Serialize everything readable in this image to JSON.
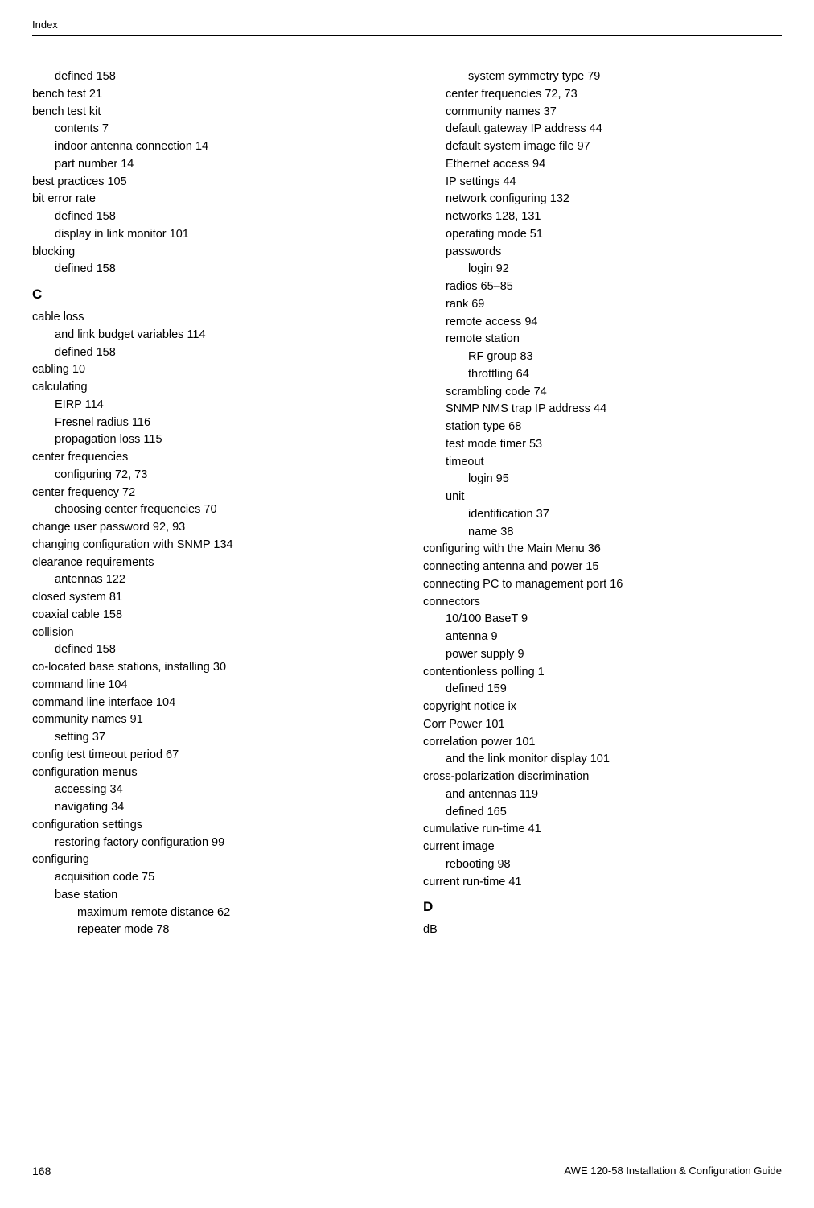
{
  "header": "Index",
  "pageNumber": "168",
  "footerRight": "AWE 120-58   Installation & Configuration Guide",
  "leftColumn": [
    {
      "text": "defined 158",
      "indent": 1
    },
    {
      "text": "bench test 21",
      "indent": 0
    },
    {
      "text": "bench test kit",
      "indent": 0
    },
    {
      "text": "contents 7",
      "indent": 1
    },
    {
      "text": "indoor antenna connection 14",
      "indent": 1
    },
    {
      "text": "part number 14",
      "indent": 1
    },
    {
      "text": "best practices 105",
      "indent": 0
    },
    {
      "text": "bit error rate",
      "indent": 0
    },
    {
      "text": "defined 158",
      "indent": 1
    },
    {
      "text": "display in link monitor 101",
      "indent": 1
    },
    {
      "text": "blocking",
      "indent": 0
    },
    {
      "text": "defined 158",
      "indent": 1
    },
    {
      "text": "C",
      "indent": 0,
      "letter": true
    },
    {
      "text": "cable loss",
      "indent": 0
    },
    {
      "text": "and link budget variables 114",
      "indent": 1
    },
    {
      "text": "defined 158",
      "indent": 1
    },
    {
      "text": "cabling 10",
      "indent": 0
    },
    {
      "text": "calculating",
      "indent": 0
    },
    {
      "text": "EIRP 114",
      "indent": 1
    },
    {
      "text": "Fresnel radius 116",
      "indent": 1
    },
    {
      "text": "propagation loss 115",
      "indent": 1
    },
    {
      "text": "center frequencies",
      "indent": 0
    },
    {
      "text": "configuring 72, 73",
      "indent": 1
    },
    {
      "text": "center frequency 72",
      "indent": 0
    },
    {
      "text": "choosing center frequencies 70",
      "indent": 1
    },
    {
      "text": "change user password 92, 93",
      "indent": 0
    },
    {
      "text": "changing configuration with SNMP 134",
      "indent": 0
    },
    {
      "text": "clearance requirements",
      "indent": 0
    },
    {
      "text": "antennas 122",
      "indent": 1
    },
    {
      "text": "closed system 81",
      "indent": 0
    },
    {
      "text": "coaxial cable 158",
      "indent": 0
    },
    {
      "text": "collision",
      "indent": 0
    },
    {
      "text": "defined 158",
      "indent": 1
    },
    {
      "text": "co-located base stations, installing 30",
      "indent": 0
    },
    {
      "text": "command line 104",
      "indent": 0
    },
    {
      "text": "command line interface 104",
      "indent": 0
    },
    {
      "text": "community names 91",
      "indent": 0
    },
    {
      "text": "setting 37",
      "indent": 1
    },
    {
      "text": "config test timeout period 67",
      "indent": 0
    },
    {
      "text": "configuration menus",
      "indent": 0
    },
    {
      "text": "accessing 34",
      "indent": 1
    },
    {
      "text": "navigating 34",
      "indent": 1
    },
    {
      "text": "configuration settings",
      "indent": 0
    },
    {
      "text": "restoring factory configuration 99",
      "indent": 1
    },
    {
      "text": "configuring",
      "indent": 0
    },
    {
      "text": "acquisition code 75",
      "indent": 1
    },
    {
      "text": "base station",
      "indent": 1
    },
    {
      "text": "maximum remote distance 62",
      "indent": 2
    },
    {
      "text": "repeater mode 78",
      "indent": 2
    }
  ],
  "rightColumn": [
    {
      "text": "system symmetry type 79",
      "indent": 2
    },
    {
      "text": "center frequencies 72, 73",
      "indent": 1
    },
    {
      "text": "community names 37",
      "indent": 1
    },
    {
      "text": "default gateway IP address 44",
      "indent": 1
    },
    {
      "text": "default system image file 97",
      "indent": 1
    },
    {
      "text": "Ethernet access 94",
      "indent": 1
    },
    {
      "text": "IP settings 44",
      "indent": 1
    },
    {
      "text": "network configuring 132",
      "indent": 1
    },
    {
      "text": "networks 128, 131",
      "indent": 1
    },
    {
      "text": "operating mode 51",
      "indent": 1
    },
    {
      "text": "passwords",
      "indent": 1
    },
    {
      "text": "login 92",
      "indent": 2
    },
    {
      "text": "radios 65–85",
      "indent": 1
    },
    {
      "text": "rank 69",
      "indent": 1
    },
    {
      "text": "remote access 94",
      "indent": 1
    },
    {
      "text": "remote station",
      "indent": 1
    },
    {
      "text": "RF group 83",
      "indent": 2
    },
    {
      "text": "throttling 64",
      "indent": 2
    },
    {
      "text": "scrambling code 74",
      "indent": 1
    },
    {
      "text": "SNMP NMS trap IP address 44",
      "indent": 1
    },
    {
      "text": "station type 68",
      "indent": 1
    },
    {
      "text": "test mode timer 53",
      "indent": 1
    },
    {
      "text": "timeout",
      "indent": 1
    },
    {
      "text": "login 95",
      "indent": 2
    },
    {
      "text": "unit",
      "indent": 1
    },
    {
      "text": "identification 37",
      "indent": 2
    },
    {
      "text": "name 38",
      "indent": 2
    },
    {
      "text": "configuring with the Main Menu 36",
      "indent": 0
    },
    {
      "text": "connecting antenna and power 15",
      "indent": 0
    },
    {
      "text": "connecting PC to management port 16",
      "indent": 0
    },
    {
      "text": "connectors",
      "indent": 0
    },
    {
      "text": "10/100 BaseT 9",
      "indent": 1
    },
    {
      "text": "antenna 9",
      "indent": 1
    },
    {
      "text": "power supply 9",
      "indent": 1
    },
    {
      "text": "contentionless polling 1",
      "indent": 0
    },
    {
      "text": "defined 159",
      "indent": 1
    },
    {
      "text": "copyright notice ix",
      "indent": 0
    },
    {
      "text": "Corr Power 101",
      "indent": 0
    },
    {
      "text": "correlation power 101",
      "indent": 0
    },
    {
      "text": "and the link monitor display 101",
      "indent": 1
    },
    {
      "text": "cross-polarization discrimination",
      "indent": 0
    },
    {
      "text": "and antennas 119",
      "indent": 1
    },
    {
      "text": "defined 165",
      "indent": 1
    },
    {
      "text": "cumulative run-time 41",
      "indent": 0
    },
    {
      "text": "current image",
      "indent": 0
    },
    {
      "text": "rebooting 98",
      "indent": 1
    },
    {
      "text": "current run-time 41",
      "indent": 0
    },
    {
      "text": "D",
      "indent": 0,
      "letter": true
    },
    {
      "text": "dB",
      "indent": 0
    }
  ]
}
